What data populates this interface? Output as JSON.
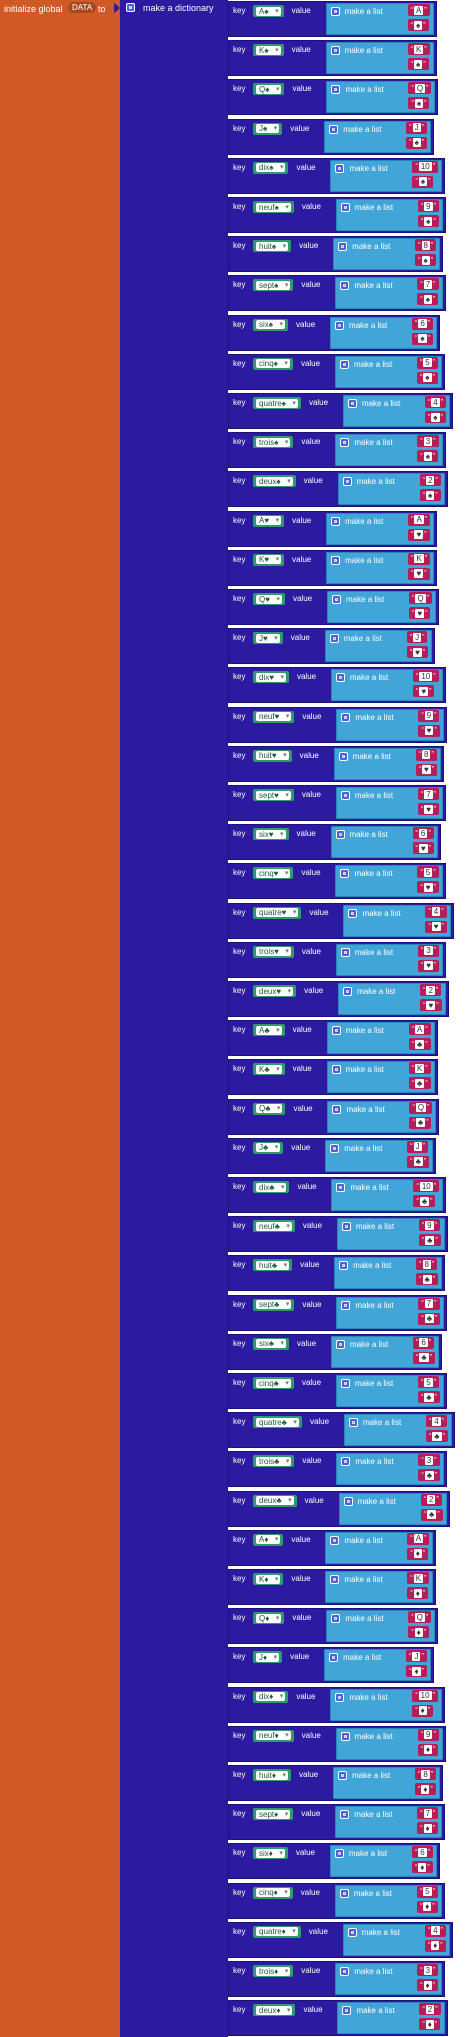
{
  "init": {
    "label_before": "initialize global",
    "var_name": "DATA",
    "label_after": "to"
  },
  "dict": {
    "label": "make a dictionary"
  },
  "labels": {
    "key": "key",
    "value": "value",
    "make_list": "make a list"
  },
  "colors": {
    "init_block": "#d05a27",
    "dict_block": "#2c1aa0",
    "key_block": "#2e9b6a",
    "list_block": "#42a5d8",
    "text_block": "#b51e59"
  },
  "pairs": [
    {
      "key": "A♠",
      "value": [
        "A",
        "♠"
      ]
    },
    {
      "key": "K♠",
      "value": [
        "K",
        "♠"
      ]
    },
    {
      "key": "Q♠",
      "value": [
        "Q",
        "♠"
      ]
    },
    {
      "key": "J♠",
      "value": [
        "J",
        "♠"
      ]
    },
    {
      "key": "dix♠",
      "value": [
        "10",
        "♠"
      ]
    },
    {
      "key": "neuf♠",
      "value": [
        "9",
        "♠"
      ]
    },
    {
      "key": "huit♠",
      "value": [
        "8",
        "♠"
      ]
    },
    {
      "key": "sept♠",
      "value": [
        "7",
        "♠"
      ]
    },
    {
      "key": "six♠",
      "value": [
        "6",
        "♠"
      ]
    },
    {
      "key": "cinq♠",
      "value": [
        "5",
        "♠"
      ]
    },
    {
      "key": "quatre♠",
      "value": [
        "4",
        "♠"
      ]
    },
    {
      "key": "trois♠",
      "value": [
        "3",
        "♠"
      ]
    },
    {
      "key": "deux♠",
      "value": [
        "2",
        "♠"
      ]
    },
    {
      "key": "A♥",
      "value": [
        "A",
        "♥"
      ]
    },
    {
      "key": "K♥",
      "value": [
        "K",
        "♥"
      ]
    },
    {
      "key": "Q♥",
      "value": [
        "Q",
        "♥"
      ]
    },
    {
      "key": "J♥",
      "value": [
        "J",
        "♥"
      ]
    },
    {
      "key": "dix♥",
      "value": [
        "10",
        "♥"
      ]
    },
    {
      "key": "neuf♥",
      "value": [
        "9",
        "♥"
      ]
    },
    {
      "key": "huit♥",
      "value": [
        "8",
        "♥"
      ]
    },
    {
      "key": "sept♥",
      "value": [
        "7",
        "♥"
      ]
    },
    {
      "key": "six♥",
      "value": [
        "6",
        "♥"
      ]
    },
    {
      "key": "cinq♥",
      "value": [
        "5",
        "♥"
      ]
    },
    {
      "key": "quatre♥",
      "value": [
        "4",
        "♥"
      ]
    },
    {
      "key": "trois♥",
      "value": [
        "3",
        "♥"
      ]
    },
    {
      "key": "deux♥",
      "value": [
        "2",
        "♥"
      ]
    },
    {
      "key": "A♣",
      "value": [
        "A",
        "♣"
      ]
    },
    {
      "key": "K♣",
      "value": [
        "K",
        "♣"
      ]
    },
    {
      "key": "Q♣",
      "value": [
        "Q",
        "♣"
      ]
    },
    {
      "key": "J♣",
      "value": [
        "J",
        "♣"
      ]
    },
    {
      "key": "dix♣",
      "value": [
        "10",
        "♣"
      ]
    },
    {
      "key": "neuf♣",
      "value": [
        "9",
        "♣"
      ]
    },
    {
      "key": "huit♣",
      "value": [
        "8",
        "♣"
      ]
    },
    {
      "key": "sept♣",
      "value": [
        "7",
        "♣"
      ]
    },
    {
      "key": "six♣",
      "value": [
        "6",
        "♣"
      ]
    },
    {
      "key": "cinq♣",
      "value": [
        "5",
        "♣"
      ]
    },
    {
      "key": "quatre♣",
      "value": [
        "4",
        "♣"
      ]
    },
    {
      "key": "trois♣",
      "value": [
        "3",
        "♣"
      ]
    },
    {
      "key": "deux♣",
      "value": [
        "2",
        "♣"
      ]
    },
    {
      "key": "A♦",
      "value": [
        "A",
        "♦"
      ]
    },
    {
      "key": "K♦",
      "value": [
        "K",
        "♦"
      ]
    },
    {
      "key": "Q♦",
      "value": [
        "Q",
        "♦"
      ]
    },
    {
      "key": "J♦",
      "value": [
        "J",
        "♦"
      ]
    },
    {
      "key": "dix♦",
      "value": [
        "10",
        "♦"
      ]
    },
    {
      "key": "neuf♦",
      "value": [
        "9",
        "♦"
      ]
    },
    {
      "key": "huit♦",
      "value": [
        "8",
        "♦"
      ]
    },
    {
      "key": "sept♦",
      "value": [
        "7",
        "♦"
      ]
    },
    {
      "key": "six♦",
      "value": [
        "6",
        "♦"
      ]
    },
    {
      "key": "cinq♦",
      "value": [
        "5",
        "♦"
      ]
    },
    {
      "key": "quatre♦",
      "value": [
        "4",
        "♦"
      ]
    },
    {
      "key": "trois♦",
      "value": [
        "3",
        "♦"
      ]
    },
    {
      "key": "deux♦",
      "value": [
        "2",
        "♦"
      ]
    }
  ]
}
